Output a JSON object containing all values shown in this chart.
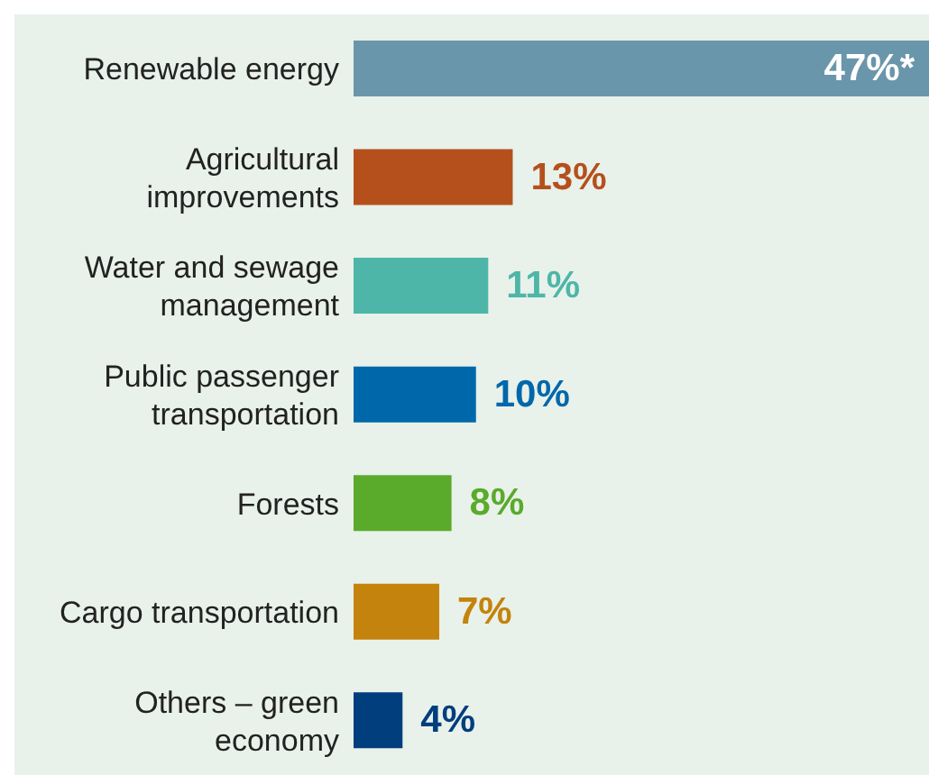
{
  "chart_data": {
    "type": "bar",
    "orientation": "horizontal",
    "tick_labels": "y",
    "categories": [
      "Renewable energy",
      "Agricultural improvements",
      "Water and sewage management",
      "Public passenger transportation",
      "Forests",
      "Cargo transportation",
      "Others – green economy"
    ],
    "values": [
      47,
      13,
      11,
      10,
      8,
      7,
      4
    ],
    "colors": [
      "#6a96ab",
      "#b5501c",
      "#4db6a8",
      "#0068aa",
      "#5aaa2c",
      "#c4830c",
      "#003e7e"
    ],
    "value_labels": [
      "47%*",
      "13%",
      "11%",
      "10%",
      "8%",
      "7%",
      "4%"
    ]
  }
}
